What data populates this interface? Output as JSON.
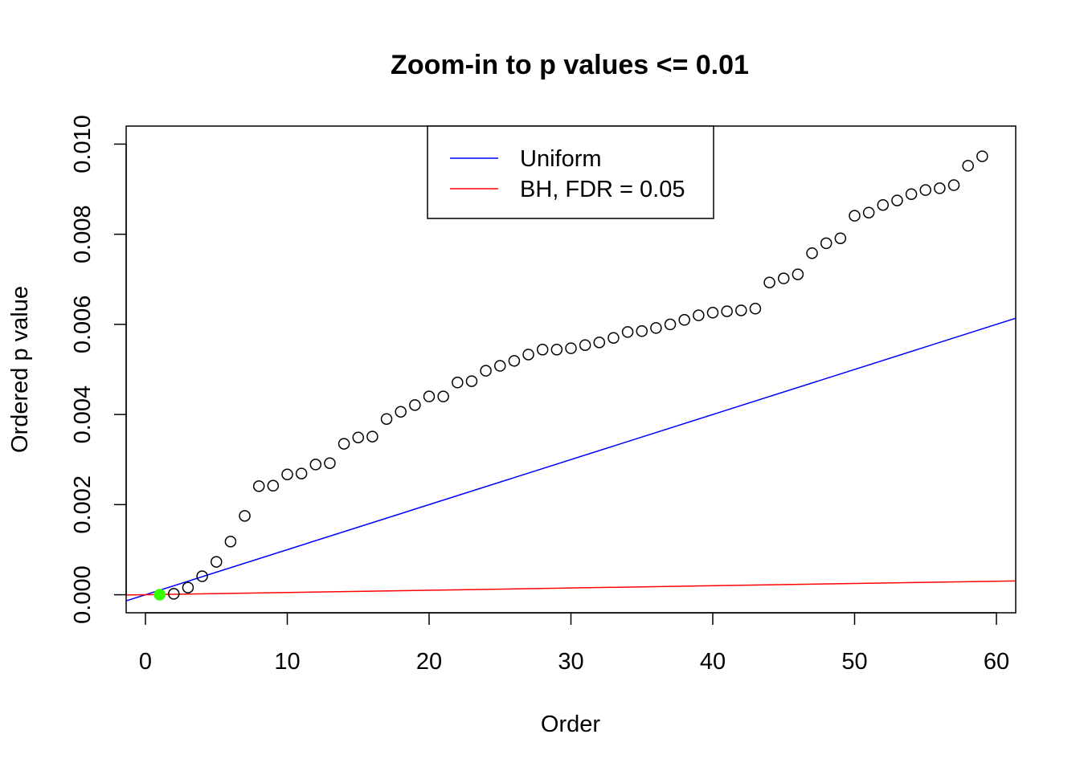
{
  "chart_data": {
    "type": "scatter",
    "title": "Zoom-in to p values <= 0.01",
    "xlabel": "Order",
    "ylabel": "Ordered p value",
    "xlim": [
      -1.36,
      61.36
    ],
    "ylim": [
      -0.0004,
      0.0104
    ],
    "x_ticks": [
      0,
      10,
      20,
      30,
      40,
      50,
      60
    ],
    "x_tick_labels": [
      "0",
      "10",
      "20",
      "30",
      "40",
      "50",
      "60"
    ],
    "y_ticks": [
      0,
      0.002,
      0.004,
      0.006,
      0.008,
      0.01
    ],
    "y_tick_labels": [
      "0.000",
      "0.002",
      "0.004",
      "0.006",
      "0.008",
      "0.010"
    ],
    "grid": false,
    "legend": {
      "placement": "top-center",
      "entries": [
        {
          "label": "Uniform",
          "color": "#0000ff"
        },
        {
          "label": "BH, FDR = 0.05",
          "color": "#ff0000"
        }
      ]
    },
    "lines": [
      {
        "name": "Uniform",
        "color": "#0000ff",
        "slope": 0.0001,
        "intercept": 0
      },
      {
        "name": "BH, FDR = 0.05",
        "color": "#ff0000",
        "slope": 5e-06,
        "intercept": 0
      }
    ],
    "series": [
      {
        "name": "ordered p values",
        "x": [
          1,
          2,
          3,
          4,
          5,
          6,
          7,
          8,
          9,
          10,
          11,
          12,
          13,
          14,
          15,
          16,
          17,
          18,
          19,
          20,
          21,
          22,
          23,
          24,
          25,
          26,
          27,
          28,
          29,
          30,
          31,
          32,
          33,
          34,
          35,
          36,
          37,
          38,
          39,
          40,
          41,
          42,
          43,
          44,
          45,
          46,
          47,
          48,
          49,
          50,
          51,
          52,
          53,
          54,
          55,
          56,
          57,
          58,
          59
        ],
        "values": [
          0.0,
          2e-05,
          0.00016,
          0.00041,
          0.00073,
          0.00118,
          0.00175,
          0.00241,
          0.00242,
          0.00267,
          0.00269,
          0.00289,
          0.00292,
          0.00335,
          0.00349,
          0.00351,
          0.0039,
          0.00406,
          0.00421,
          0.0044,
          0.0044,
          0.00471,
          0.00474,
          0.00497,
          0.00508,
          0.00519,
          0.00533,
          0.00544,
          0.00544,
          0.00547,
          0.00554,
          0.0056,
          0.0057,
          0.00583,
          0.00585,
          0.00592,
          0.006,
          0.0061,
          0.0062,
          0.00626,
          0.00629,
          0.00631,
          0.00635,
          0.00693,
          0.00702,
          0.00711,
          0.00758,
          0.0078,
          0.00791,
          0.00841,
          0.00848,
          0.00865,
          0.00875,
          0.00889,
          0.00898,
          0.00902,
          0.00909,
          0.00952,
          0.00973
        ],
        "point_color": "#000000",
        "highlight_indices": [
          0
        ],
        "highlight_color": "#33ff00"
      }
    ]
  }
}
